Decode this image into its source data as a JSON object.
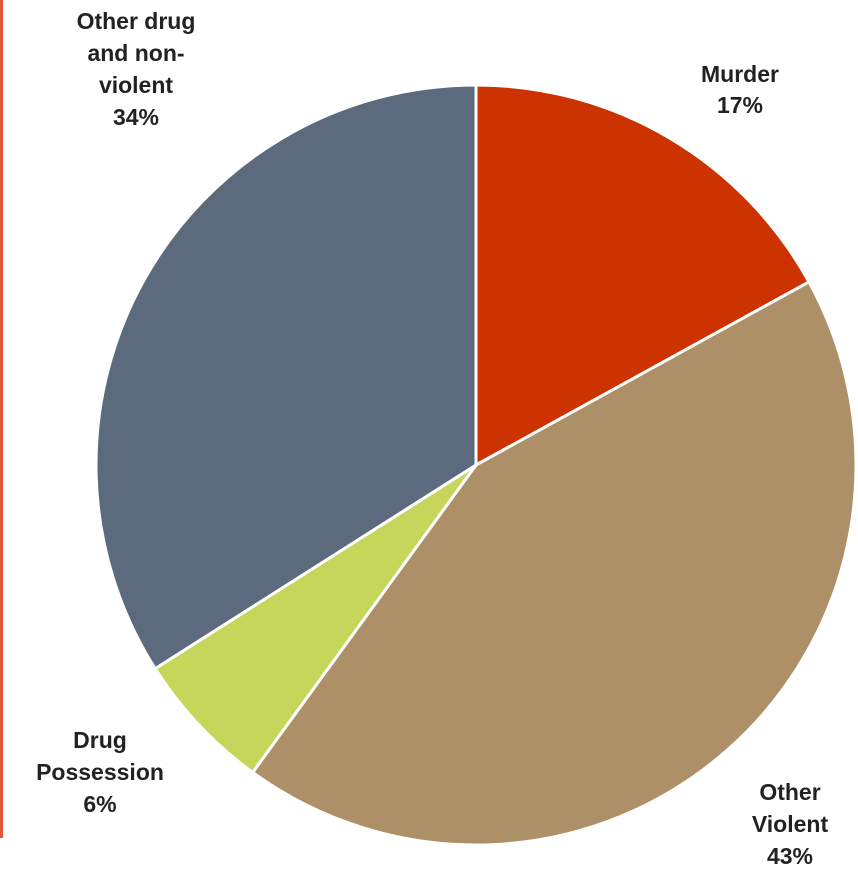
{
  "chart_data": {
    "type": "pie",
    "slices": [
      {
        "lines": [
          "Murder"
        ],
        "pct_label": "17%",
        "value": 17,
        "color": "#cc3300"
      },
      {
        "lines": [
          "Other",
          "Violent"
        ],
        "pct_label": "43%",
        "value": 43,
        "color": "#ad8f68"
      },
      {
        "lines": [
          "Drug",
          "Possession"
        ],
        "pct_label": "6%",
        "value": 6,
        "color": "#c6d65a"
      },
      {
        "lines": [
          "Other drug",
          "and non-",
          "violent"
        ],
        "pct_label": "34%",
        "value": 34,
        "color": "#5c6a7d"
      }
    ],
    "start_angle": "12 o'clock",
    "direction": "clockwise",
    "legend": "none"
  }
}
